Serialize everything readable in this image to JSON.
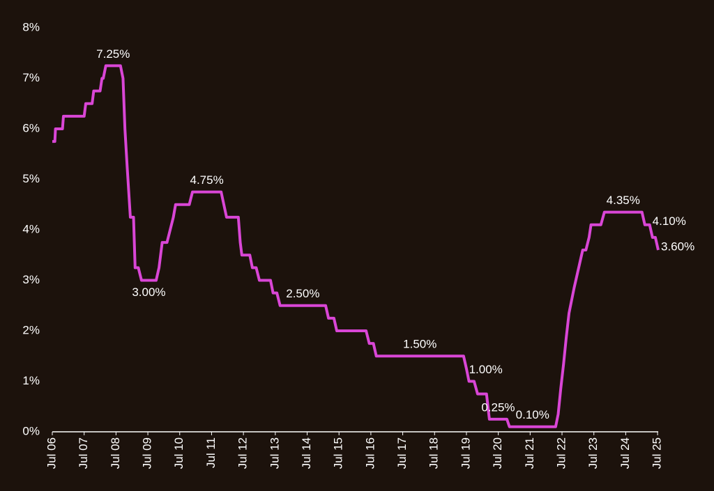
{
  "chart_data": {
    "type": "line",
    "x": [
      2006.5,
      2006.58,
      2006.6,
      2006.82,
      2006.85,
      2007.5,
      2007.55,
      2007.75,
      2007.8,
      2008.0,
      2008.06,
      2008.1,
      2008.18,
      2008.64,
      2008.72,
      2008.78,
      2008.85,
      2008.95,
      2009.05,
      2009.1,
      2009.2,
      2009.3,
      2009.76,
      2009.85,
      2009.9,
      2009.95,
      2010.1,
      2010.2,
      2010.3,
      2010.37,
      2010.8,
      2010.9,
      2011.8,
      2011.97,
      2012.34,
      2012.4,
      2012.45,
      2012.7,
      2012.78,
      2012.9,
      2013.0,
      2013.35,
      2013.43,
      2013.55,
      2013.65,
      2015.08,
      2015.17,
      2015.34,
      2015.43,
      2016.35,
      2016.45,
      2016.58,
      2016.67,
      2019.41,
      2019.5,
      2019.58,
      2019.74,
      2019.85,
      2020.13,
      2020.22,
      2020.77,
      2020.85,
      2022.3,
      2022.38,
      2022.46,
      2022.55,
      2022.63,
      2022.72,
      2022.8,
      2022.88,
      2022.97,
      2023.06,
      2023.15,
      2023.25,
      2023.35,
      2023.41,
      2023.72,
      2023.83,
      2025.01,
      2025.1,
      2025.25,
      2025.34,
      2025.43,
      2025.52
    ],
    "series": [
      {
        "color": "#d946d6",
        "values": [
          5.75,
          5.75,
          6.0,
          6.0,
          6.25,
          6.25,
          6.5,
          6.5,
          6.75,
          6.75,
          7.0,
          7.0,
          7.25,
          7.25,
          7.0,
          6.0,
          5.25,
          4.25,
          4.25,
          3.25,
          3.25,
          3.0,
          3.0,
          3.25,
          3.5,
          3.75,
          3.75,
          4.0,
          4.25,
          4.5,
          4.5,
          4.75,
          4.75,
          4.25,
          4.25,
          3.75,
          3.5,
          3.5,
          3.25,
          3.25,
          3.0,
          3.0,
          2.75,
          2.75,
          2.5,
          2.5,
          2.25,
          2.25,
          2.0,
          2.0,
          1.75,
          1.75,
          1.5,
          1.5,
          1.25,
          1.0,
          1.0,
          0.75,
          0.75,
          0.25,
          0.25,
          0.1,
          0.1,
          0.35,
          0.85,
          1.35,
          1.85,
          2.35,
          2.6,
          2.85,
          3.1,
          3.35,
          3.6,
          3.6,
          3.85,
          4.1,
          4.1,
          4.35,
          4.35,
          4.1,
          4.1,
          3.85,
          3.85,
          3.6
        ],
        "value_labels": [
          null,
          null,
          null,
          null,
          null,
          null,
          null,
          null,
          null,
          null,
          null,
          null,
          "7.25%",
          null,
          null,
          null,
          null,
          null,
          null,
          null,
          null,
          "3.00%",
          null,
          null,
          null,
          null,
          null,
          null,
          null,
          null,
          null,
          "4.75%",
          null,
          null,
          null,
          null,
          null,
          null,
          null,
          null,
          null,
          null,
          null,
          null,
          "2.50%",
          null,
          null,
          null,
          null,
          null,
          null,
          null,
          "1.50%",
          null,
          null,
          "1.00%",
          null,
          null,
          null,
          "0.25%",
          null,
          "0.10%",
          null,
          null,
          null,
          null,
          null,
          null,
          null,
          null,
          null,
          null,
          null,
          null,
          null,
          null,
          null,
          "4.35%",
          null,
          "4.10%",
          null,
          null,
          null,
          "3.60%"
        ]
      }
    ],
    "xlim": [
      2006.5,
      2025.52
    ],
    "xticks": [
      {
        "value": 2006.5,
        "label": "Jul 06"
      },
      {
        "value": 2007.5,
        "label": "Jul 07"
      },
      {
        "value": 2008.5,
        "label": "Jul 08"
      },
      {
        "value": 2009.5,
        "label": "Jul 09"
      },
      {
        "value": 2010.5,
        "label": "Jul 10"
      },
      {
        "value": 2011.5,
        "label": "Jul 11"
      },
      {
        "value": 2012.5,
        "label": "Jul 12"
      },
      {
        "value": 2013.5,
        "label": "Jul 13"
      },
      {
        "value": 2014.5,
        "label": "Jul 14"
      },
      {
        "value": 2015.5,
        "label": "Jul 15"
      },
      {
        "value": 2016.5,
        "label": "Jul 16"
      },
      {
        "value": 2017.5,
        "label": "Jul 17"
      },
      {
        "value": 2018.5,
        "label": "Jul 18"
      },
      {
        "value": 2019.5,
        "label": "Jul 19"
      },
      {
        "value": 2020.5,
        "label": "Jul 20"
      },
      {
        "value": 2021.5,
        "label": "Jul 21"
      },
      {
        "value": 2022.5,
        "label": "Jul 22"
      },
      {
        "value": 2023.5,
        "label": "Jul 23"
      },
      {
        "value": 2024.5,
        "label": "Jul 24"
      },
      {
        "value": 2025.5,
        "label": "Jul 25"
      }
    ],
    "ylim": [
      0,
      8
    ],
    "yticks": [
      {
        "value": 0,
        "label": "0%"
      },
      {
        "value": 1,
        "label": "1%"
      },
      {
        "value": 2,
        "label": "2%"
      },
      {
        "value": 3,
        "label": "3%"
      },
      {
        "value": 4,
        "label": "4%"
      },
      {
        "value": 5,
        "label": "5%"
      },
      {
        "value": 6,
        "label": "6%"
      },
      {
        "value": 7,
        "label": "7%"
      },
      {
        "value": 8,
        "label": "8%"
      }
    ]
  }
}
